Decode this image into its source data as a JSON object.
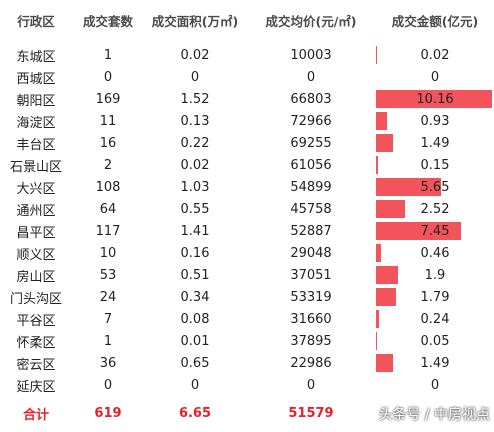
{
  "chart_data": {
    "type": "table",
    "columns": [
      "行政区",
      "成交套数",
      "成交面积(万㎡)",
      "成交均价(元/㎡)",
      "成交金额(亿元)"
    ],
    "rows": [
      {
        "district": "东城区",
        "count": "1",
        "area": "0.02",
        "price": "10003",
        "amount": "0.02",
        "amount_value": 0.02
      },
      {
        "district": "西城区",
        "count": "0",
        "area": "0",
        "price": "0",
        "amount": "0",
        "amount_value": 0
      },
      {
        "district": "朝阳区",
        "count": "169",
        "area": "1.52",
        "price": "66803",
        "amount": "10.16",
        "amount_value": 10.16
      },
      {
        "district": "海淀区",
        "count": "11",
        "area": "0.13",
        "price": "72966",
        "amount": "0.93",
        "amount_value": 0.93
      },
      {
        "district": "丰台区",
        "count": "16",
        "area": "0.22",
        "price": "69255",
        "amount": "1.49",
        "amount_value": 1.49
      },
      {
        "district": "石景山区",
        "count": "2",
        "area": "0.02",
        "price": "61056",
        "amount": "0.15",
        "amount_value": 0.15
      },
      {
        "district": "大兴区",
        "count": "108",
        "area": "1.03",
        "price": "54899",
        "amount": "5.65",
        "amount_value": 5.65
      },
      {
        "district": "通州区",
        "count": "64",
        "area": "0.55",
        "price": "45758",
        "amount": "2.52",
        "amount_value": 2.52
      },
      {
        "district": "昌平区",
        "count": "117",
        "area": "1.41",
        "price": "52887",
        "amount": "7.45",
        "amount_value": 7.45
      },
      {
        "district": "顺义区",
        "count": "10",
        "area": "0.16",
        "price": "29048",
        "amount": "0.46",
        "amount_value": 0.46
      },
      {
        "district": "房山区",
        "count": "53",
        "area": "0.51",
        "price": "37051",
        "amount": "1.9",
        "amount_value": 1.9
      },
      {
        "district": "门头沟区",
        "count": "24",
        "area": "0.34",
        "price": "53319",
        "amount": "1.79",
        "amount_value": 1.79
      },
      {
        "district": "平谷区",
        "count": "7",
        "area": "0.08",
        "price": "31660",
        "amount": "0.24",
        "amount_value": 0.24
      },
      {
        "district": "怀柔区",
        "count": "1",
        "area": "0.01",
        "price": "37895",
        "amount": "0.05",
        "amount_value": 0.05
      },
      {
        "district": "密云区",
        "count": "36",
        "area": "0.65",
        "price": "22986",
        "amount": "1.49",
        "amount_value": 1.49
      },
      {
        "district": "延庆区",
        "count": "0",
        "area": "0",
        "price": "0",
        "amount": "0",
        "amount_value": 0
      }
    ],
    "total": {
      "district": "合计",
      "count": "619",
      "area": "6.65",
      "price": "51579"
    },
    "bar_max": 10.16,
    "bar_color": "#f2545b",
    "total_color": "#e8202a"
  },
  "watermark": "头条号 / 中房视点"
}
